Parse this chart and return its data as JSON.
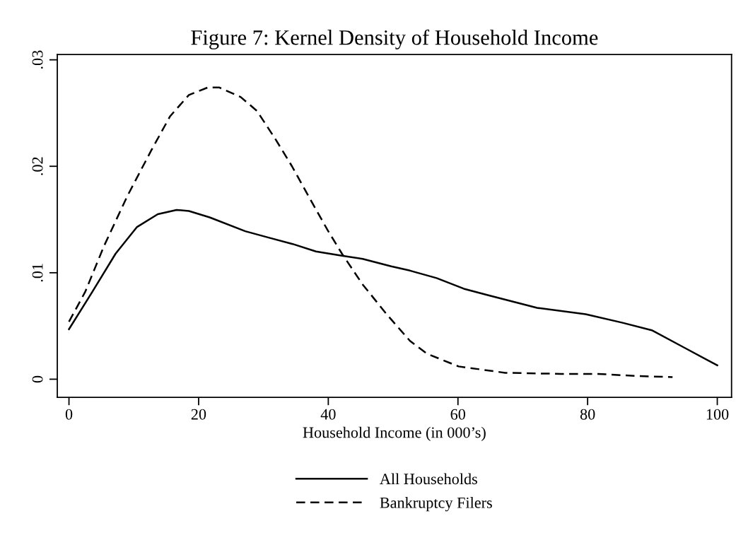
{
  "chart_data": {
    "type": "line",
    "title": "Figure 7: Kernel Density of Household Income",
    "xlabel": "Household Income (in 000’s)",
    "xlim": [
      -1.8,
      102.2
    ],
    "xticks": [
      0,
      20,
      40,
      60,
      80,
      100
    ],
    "ylim": [
      -0.0017,
      0.0305
    ],
    "yticks": [
      {
        "value": 0,
        "label": "0"
      },
      {
        "value": 0.01,
        "label": ".01"
      },
      {
        "value": 0.02,
        "label": ".02"
      },
      {
        "value": 0.03,
        "label": ".03"
      }
    ],
    "grid": false,
    "legend": "bottom",
    "marker": "none",
    "series": [
      {
        "name": "All Households",
        "color": "#000000",
        "line_style": "solid",
        "x": [
          0,
          3.6,
          7.2,
          10.5,
          13.7,
          16.6,
          18.5,
          21.7,
          27.2,
          30.8,
          34.5,
          38.1,
          42.1,
          45.3,
          49.7,
          52.6,
          56.7,
          60.9,
          64.6,
          72.2,
          79.7,
          85.4,
          89.9,
          94.8,
          100
        ],
        "values": [
          0.0047,
          0.0082,
          0.0118,
          0.0143,
          0.0155,
          0.0159,
          0.0158,
          0.0152,
          0.0139,
          0.0133,
          0.0127,
          0.012,
          0.0116,
          0.0113,
          0.0106,
          0.0102,
          0.0095,
          0.0085,
          0.0079,
          0.0067,
          0.0061,
          0.0053,
          0.0046,
          0.003,
          0.0013
        ]
      },
      {
        "name": "Bankruptcy Filers",
        "color": "#000000",
        "line_style": "dashed",
        "x": [
          0,
          2.5,
          5.4,
          9.0,
          12.7,
          15.6,
          18.5,
          21.4,
          23.2,
          26.5,
          29.0,
          31.9,
          34.4,
          37.4,
          39.9,
          42.1,
          45.3,
          49.0,
          52.6,
          55.2,
          60.1,
          67.3,
          75.9,
          81.6,
          87.6,
          93.1
        ],
        "values": [
          0.0054,
          0.0082,
          0.0125,
          0.0172,
          0.0215,
          0.0247,
          0.0267,
          0.0274,
          0.0274,
          0.0265,
          0.0252,
          0.0225,
          0.02,
          0.0167,
          0.014,
          0.0118,
          0.0089,
          0.0061,
          0.0036,
          0.0024,
          0.0012,
          0.0006,
          0.0005,
          0.0005,
          0.0003,
          0.0002
        ]
      }
    ]
  }
}
